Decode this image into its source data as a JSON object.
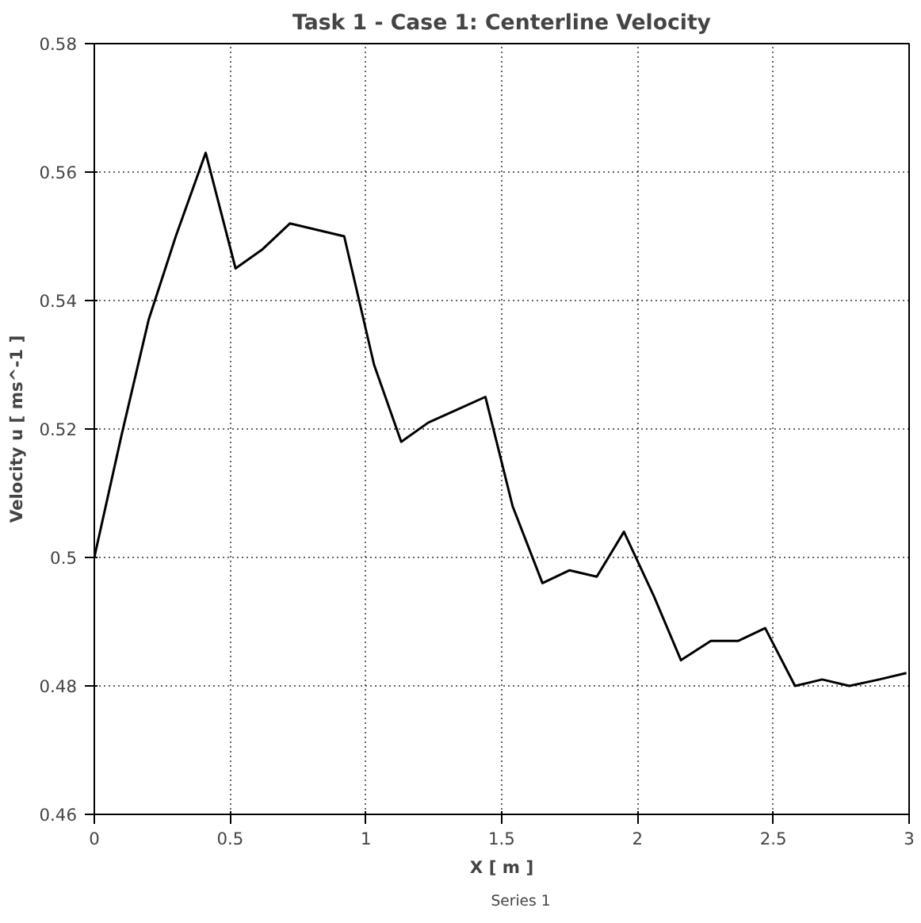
{
  "chart_data": {
    "type": "line",
    "title": "Task 1 - Case 1: Centerline Velocity",
    "xlabel": "X [ m ]",
    "ylabel": "Velocity u [ ms^-1 ]",
    "x": [
      0,
      0.1,
      0.2,
      0.3,
      0.41,
      0.52,
      0.62,
      0.72,
      0.92,
      1.03,
      1.13,
      1.23,
      1.44,
      1.54,
      1.65,
      1.75,
      1.85,
      1.95,
      2.06,
      2.16,
      2.27,
      2.37,
      2.47,
      2.58,
      2.68,
      2.78,
      2.89,
      2.99
    ],
    "series": [
      {
        "name": "Series 1",
        "color": "#000000",
        "values": [
          0.5,
          0.519,
          0.537,
          0.55,
          0.563,
          0.545,
          0.548,
          0.552,
          0.55,
          0.53,
          0.518,
          0.521,
          0.525,
          0.508,
          0.496,
          0.498,
          0.497,
          0.504,
          0.494,
          0.484,
          0.487,
          0.487,
          0.489,
          0.48,
          0.481,
          0.48,
          0.481,
          0.482
        ]
      }
    ],
    "xlim": [
      0,
      3
    ],
    "ylim": [
      0.46,
      0.58
    ],
    "xticks": [
      0,
      0.5,
      1,
      1.5,
      2,
      2.5,
      3
    ],
    "yticks": [
      {
        "value": 0.46,
        "label": "0.46"
      },
      {
        "value": 0.48,
        "label": "0.48"
      },
      {
        "value": 0.5,
        "label": "0.5"
      },
      {
        "value": 0.52,
        "label": "0.52"
      },
      {
        "value": 0.54,
        "label": "0.54"
      },
      {
        "value": 0.56,
        "label": "0.56"
      },
      {
        "value": 0.58,
        "label": "0.58"
      }
    ],
    "grid": true,
    "legend": "bottom",
    "marker": "none",
    "line_style": "solid"
  }
}
